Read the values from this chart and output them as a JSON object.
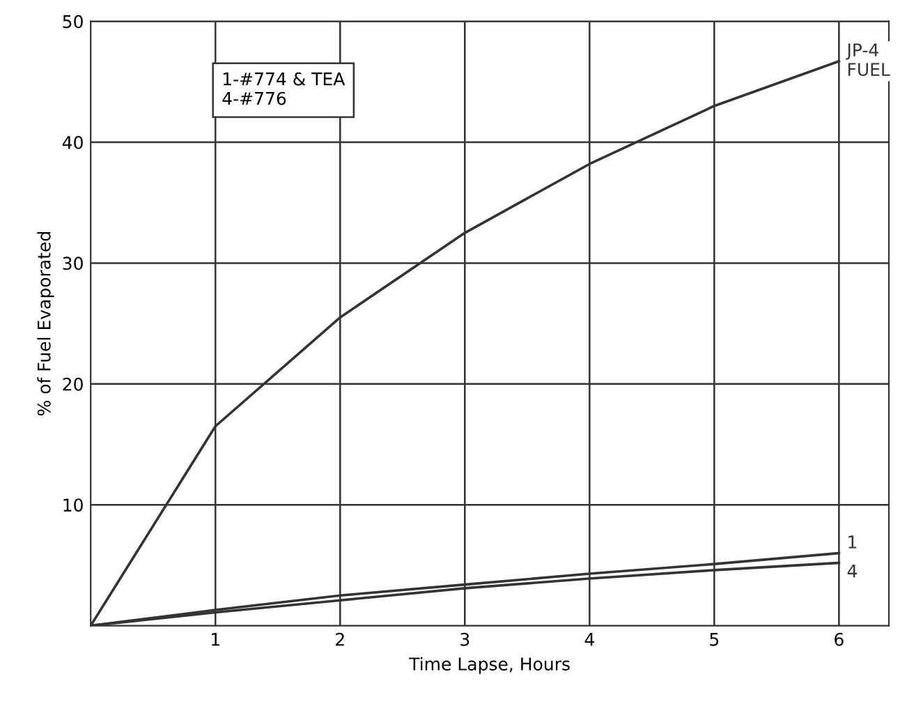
{
  "chart_data": {
    "type": "line",
    "xlabel": "Time Lapse, Hours",
    "ylabel": "% of Fuel Evaporated",
    "x": [
      0,
      1,
      2,
      3,
      4,
      5,
      6
    ],
    "series": [
      {
        "name": "JP-4\nFUEL",
        "color": "#333333",
        "values": [
          0,
          16.5,
          25.5,
          32.5,
          38.2,
          43,
          46.7
        ]
      },
      {
        "name": "1",
        "color": "#333333",
        "values": [
          0,
          1.3,
          2.5,
          3.4,
          4.3,
          5.1,
          6.0
        ]
      },
      {
        "name": "4",
        "color": "#333333",
        "values": [
          0,
          1.1,
          2.1,
          3.1,
          3.9,
          4.6,
          5.2
        ]
      }
    ],
    "annotations": [
      "1-#774 & TEA\n4-#776"
    ],
    "xlim": [
      0,
      6.4
    ],
    "ylim": [
      0,
      50
    ],
    "xticks": [
      1,
      2,
      3,
      4,
      5,
      6
    ],
    "yticks": [
      10,
      20,
      30,
      40,
      50
    ],
    "grid": true,
    "legend": false,
    "marker": "none",
    "line_style": "solid"
  }
}
